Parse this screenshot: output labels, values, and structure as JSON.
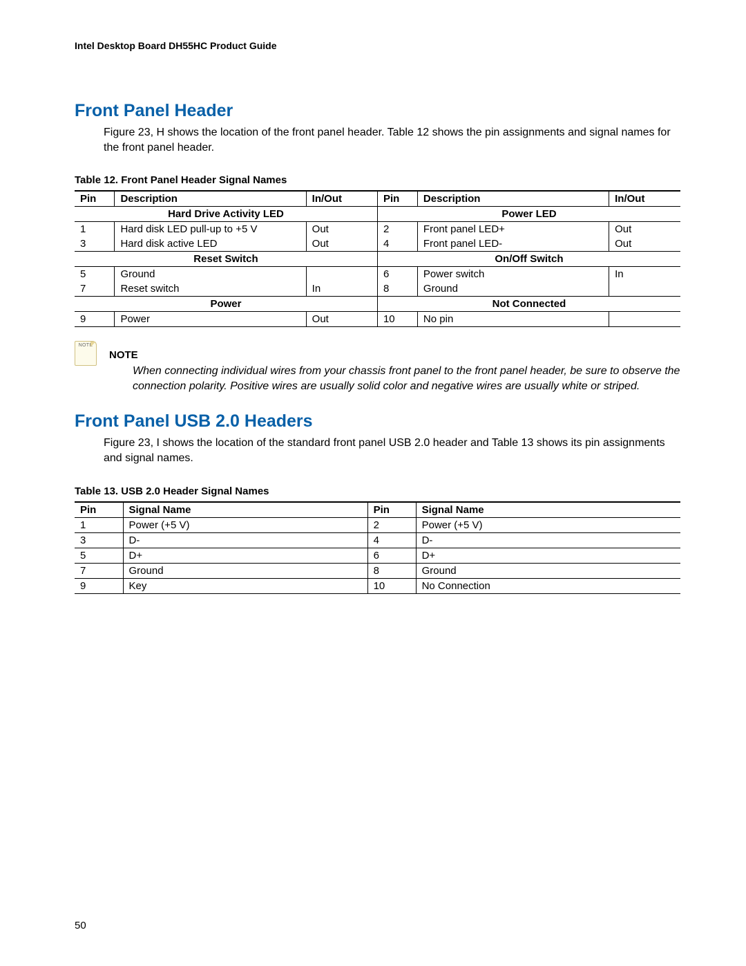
{
  "doc_header": "Intel Desktop Board DH55HC Product Guide",
  "page_number": "50",
  "section1": {
    "heading": "Front Panel Header",
    "intro": "Figure 23, H shows the location of the front panel header.  Table 12 shows the pin assignments and signal names for the front panel header.",
    "table_caption": "Table 12. Front Panel Header Signal Names",
    "headers": {
      "pin": "Pin",
      "desc": "Description",
      "io": "In/Out"
    },
    "groups": [
      {
        "left_label": "Hard Drive Activity LED",
        "right_label": "Power LED",
        "rows": [
          {
            "lp": "1",
            "ld": "Hard disk LED pull-up to +5 V",
            "lio": "Out",
            "rp": "2",
            "rd": "Front panel LED+",
            "rio": "Out"
          },
          {
            "lp": "3",
            "ld": "Hard disk active LED",
            "lio": "Out",
            "rp": "4",
            "rd": "Front panel LED-",
            "rio": "Out"
          }
        ]
      },
      {
        "left_label": "Reset Switch",
        "right_label": "On/Off Switch",
        "rows": [
          {
            "lp": "5",
            "ld": "Ground",
            "lio": "",
            "rp": "6",
            "rd": "Power switch",
            "rio": "In"
          },
          {
            "lp": "7",
            "ld": "Reset switch",
            "lio": "In",
            "rp": "8",
            "rd": "Ground",
            "rio": ""
          }
        ]
      },
      {
        "left_label": "Power",
        "right_label": "Not Connected",
        "rows": [
          {
            "lp": "9",
            "ld": "Power",
            "lio": "Out",
            "rp": "10",
            "rd": "No pin",
            "rio": ""
          }
        ]
      }
    ]
  },
  "note": {
    "icon_text": "NOTE",
    "title": "NOTE",
    "body": "When connecting individual wires from your chassis front panel to the front panel header, be sure to observe the connection polarity.  Positive wires are usually solid color and negative wires are usually white or striped."
  },
  "section2": {
    "heading": "Front Panel USB 2.0 Headers",
    "intro": "Figure 23, I shows the location of the standard front panel USB 2.0 header and Table 13 shows its pin assignments and signal names.",
    "table_caption": "Table 13. USB 2.0 Header Signal Names",
    "headers": {
      "pin": "Pin",
      "sig": "Signal Name"
    },
    "rows": [
      {
        "lp": "1",
        "ls": "Power (+5 V)",
        "rp": "2",
        "rs": "Power (+5 V)"
      },
      {
        "lp": "3",
        "ls": "D-",
        "rp": "4",
        "rs": "D-"
      },
      {
        "lp": "5",
        "ls": "D+",
        "rp": "6",
        "rs": "D+"
      },
      {
        "lp": "7",
        "ls": "Ground",
        "rp": "8",
        "rs": "Ground"
      },
      {
        "lp": "9",
        "ls": "Key",
        "rp": "10",
        "rs": "No Connection"
      }
    ]
  }
}
